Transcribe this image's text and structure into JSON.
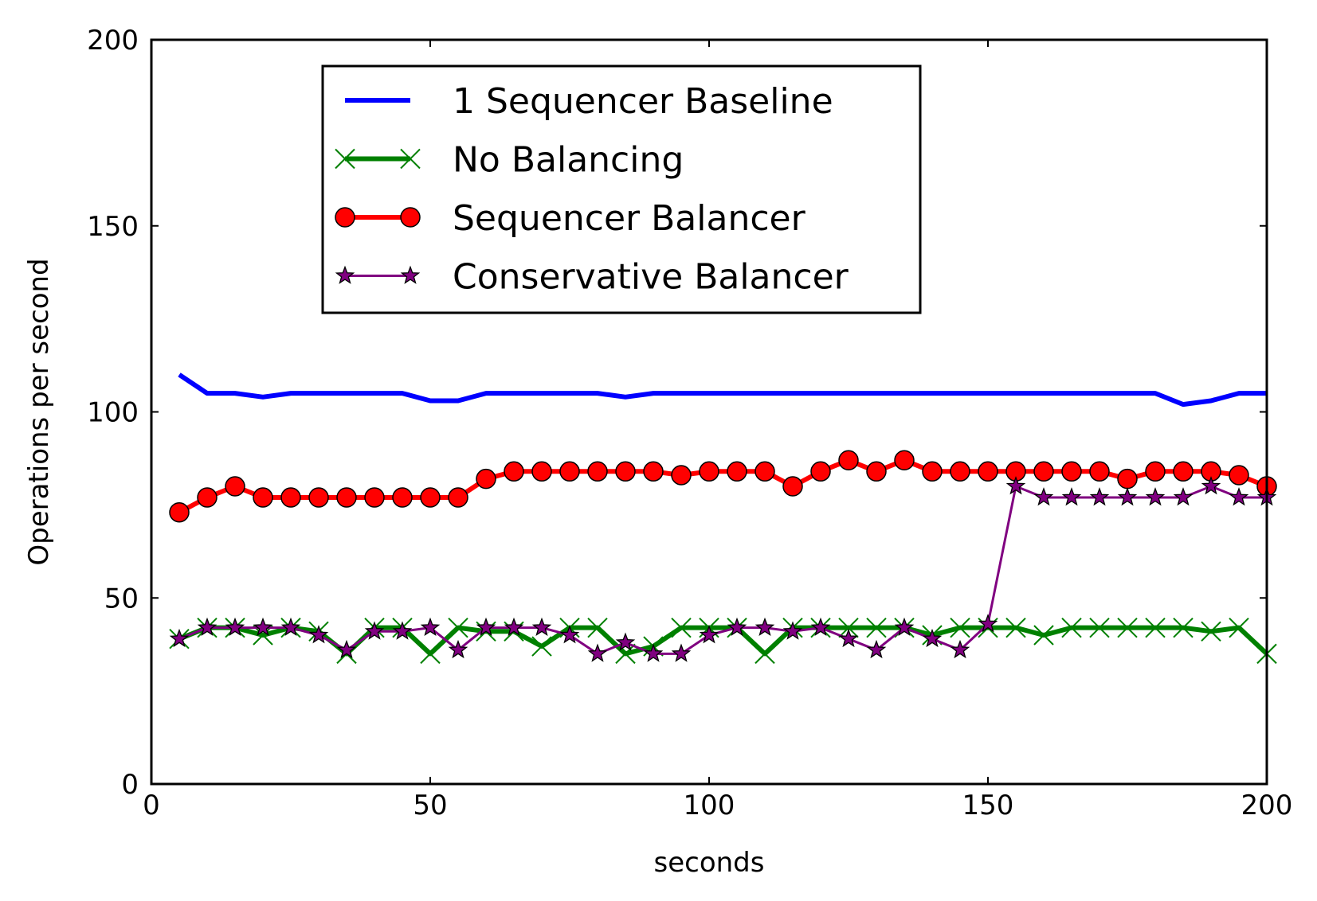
{
  "chart_data": {
    "type": "line",
    "title": "",
    "xlabel": "seconds",
    "ylabel": "Operations per second",
    "xlim": [
      0,
      200
    ],
    "ylim": [
      0,
      200
    ],
    "xticks": [
      0,
      50,
      100,
      150,
      200
    ],
    "yticks": [
      0,
      50,
      100,
      150,
      200
    ],
    "grid": false,
    "legend_position": "top-center",
    "x": [
      5,
      10,
      15,
      20,
      25,
      30,
      35,
      40,
      45,
      50,
      55,
      60,
      65,
      70,
      75,
      80,
      85,
      90,
      95,
      100,
      105,
      110,
      115,
      120,
      125,
      130,
      135,
      140,
      145,
      150,
      155,
      160,
      165,
      170,
      175,
      180,
      185,
      190,
      195,
      200
    ],
    "series": [
      {
        "name": "1 Sequencer Baseline",
        "color": "#0000ff",
        "marker": "none",
        "values": [
          110,
          105,
          105,
          104,
          105,
          105,
          105,
          105,
          105,
          103,
          103,
          105,
          105,
          105,
          105,
          105,
          104,
          105,
          105,
          105,
          105,
          105,
          105,
          105,
          105,
          105,
          105,
          105,
          105,
          105,
          105,
          105,
          105,
          105,
          105,
          105,
          102,
          103,
          105,
          105
        ]
      },
      {
        "name": "No Balancing",
        "color": "#008000",
        "marker": "x",
        "values": [
          39,
          42,
          42,
          40,
          42,
          41,
          35,
          42,
          42,
          35,
          42,
          41,
          41,
          37,
          42,
          42,
          35,
          37,
          42,
          42,
          42,
          35,
          42,
          42,
          42,
          42,
          42,
          40,
          42,
          42,
          42,
          40,
          42,
          42,
          42,
          42,
          42,
          41,
          42,
          35
        ]
      },
      {
        "name": "Sequencer Balancer",
        "color": "#ff0000",
        "marker": "circle",
        "values": [
          73,
          77,
          80,
          77,
          77,
          77,
          77,
          77,
          77,
          77,
          77,
          82,
          84,
          84,
          84,
          84,
          84,
          84,
          83,
          84,
          84,
          84,
          80,
          84,
          87,
          84,
          87,
          84,
          84,
          84,
          84,
          84,
          84,
          84,
          82,
          84,
          84,
          84,
          83,
          80
        ]
      },
      {
        "name": "Conservative Balancer",
        "color": "#800080",
        "marker": "star",
        "values": [
          39,
          42,
          42,
          42,
          42,
          40,
          36,
          41,
          41,
          42,
          36,
          42,
          42,
          42,
          40,
          35,
          38,
          35,
          35,
          40,
          42,
          42,
          41,
          42,
          39,
          36,
          42,
          39,
          36,
          43,
          80,
          77,
          77,
          77,
          77,
          77,
          77,
          80,
          77,
          77
        ]
      }
    ]
  }
}
